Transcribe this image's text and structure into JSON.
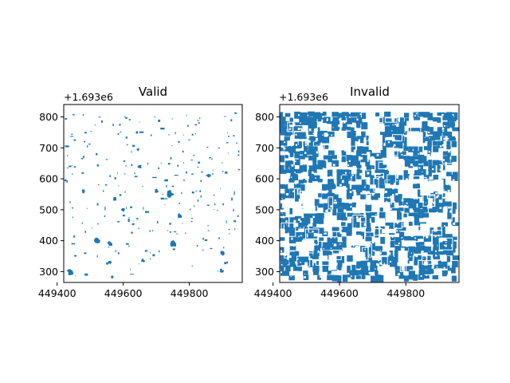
{
  "chart_data": [
    {
      "type": "polygon-map",
      "title": "Valid",
      "xlabel": "",
      "ylabel": "",
      "xlim": [
        449420,
        449960
      ],
      "ylim": [
        1693265,
        1693840
      ],
      "x_ticks": [
        449400,
        449600,
        449800
      ],
      "x_tick_labels": [
        "449400",
        "449600",
        "449800"
      ],
      "y_ticks": [
        300,
        400,
        500,
        600,
        700,
        800
      ],
      "y_tick_labels": [
        "300",
        "400",
        "500",
        "600",
        "700",
        "800"
      ],
      "y_offset_label": "+1.693e6",
      "fill_color": "#1f77b4",
      "coverage": "sparse",
      "polygons": [
        {
          "x": 449440,
          "y": 1693300,
          "r": 12
        },
        {
          "x": 449520,
          "y": 1693400,
          "r": 10
        },
        {
          "x": 449560,
          "y": 1693390,
          "r": 9
        },
        {
          "x": 449740,
          "y": 1693550,
          "r": 14
        },
        {
          "x": 449750,
          "y": 1693390,
          "r": 12
        },
        {
          "x": 449650,
          "y": 1693640,
          "r": 7
        },
        {
          "x": 449700,
          "y": 1693560,
          "r": 8
        },
        {
          "x": 449900,
          "y": 1693360,
          "r": 8
        },
        {
          "x": 449770,
          "y": 1693480,
          "r": 8
        },
        {
          "x": 449480,
          "y": 1693560,
          "r": 7
        },
        {
          "x": 449600,
          "y": 1693500,
          "r": 7
        },
        {
          "x": 449860,
          "y": 1693610,
          "r": 7
        },
        {
          "x": 449645,
          "y": 1693695,
          "r": 5
        },
        {
          "x": 449660,
          "y": 1693335,
          "r": 6
        },
        {
          "x": 449560,
          "y": 1693330,
          "r": 6
        },
        {
          "x": 449900,
          "y": 1693300,
          "r": 6
        }
      ]
    },
    {
      "type": "polygon-map",
      "title": "Invalid",
      "xlabel": "",
      "ylabel": "",
      "xlim": [
        449420,
        449960
      ],
      "ylim": [
        1693265,
        1693840
      ],
      "x_ticks": [
        449400,
        449600,
        449800
      ],
      "x_tick_labels": [
        "449400",
        "449600",
        "449800"
      ],
      "y_ticks": [
        300,
        400,
        500,
        600,
        700,
        800
      ],
      "y_tick_labels": [
        "300",
        "400",
        "500",
        "600",
        "700",
        "800"
      ],
      "y_offset_label": "+1.693e6",
      "fill_color": "#1f77b4",
      "coverage": "dense",
      "polygons": []
    }
  ]
}
